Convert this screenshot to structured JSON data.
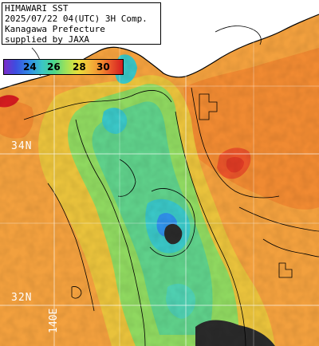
{
  "caption": {
    "line1": "HIMAWARI SST",
    "line2": "2025/07/22 04(UTC) 3H Comp.",
    "line3": "Kanagawa Prefecture",
    "line4": "supplied by JAXA"
  },
  "legend": {
    "ticks": [
      "24",
      "26",
      "28",
      "30"
    ],
    "colors": {
      "cold": "#7a2cc9",
      "blue": "#2f8fe6",
      "cyan": "#3ac6c6",
      "green": "#4bd68a",
      "yellow": "#e6e13a",
      "orange": "#f28a2e",
      "red": "#d41c20"
    }
  },
  "grid_labels": {
    "lat_34": "34N",
    "lat_32": "32N",
    "lon_140": "140E"
  },
  "colors": {
    "land": "#ffffff",
    "missing": "#2a2a2a",
    "grid": "#ffffff",
    "coast": "#000000"
  }
}
